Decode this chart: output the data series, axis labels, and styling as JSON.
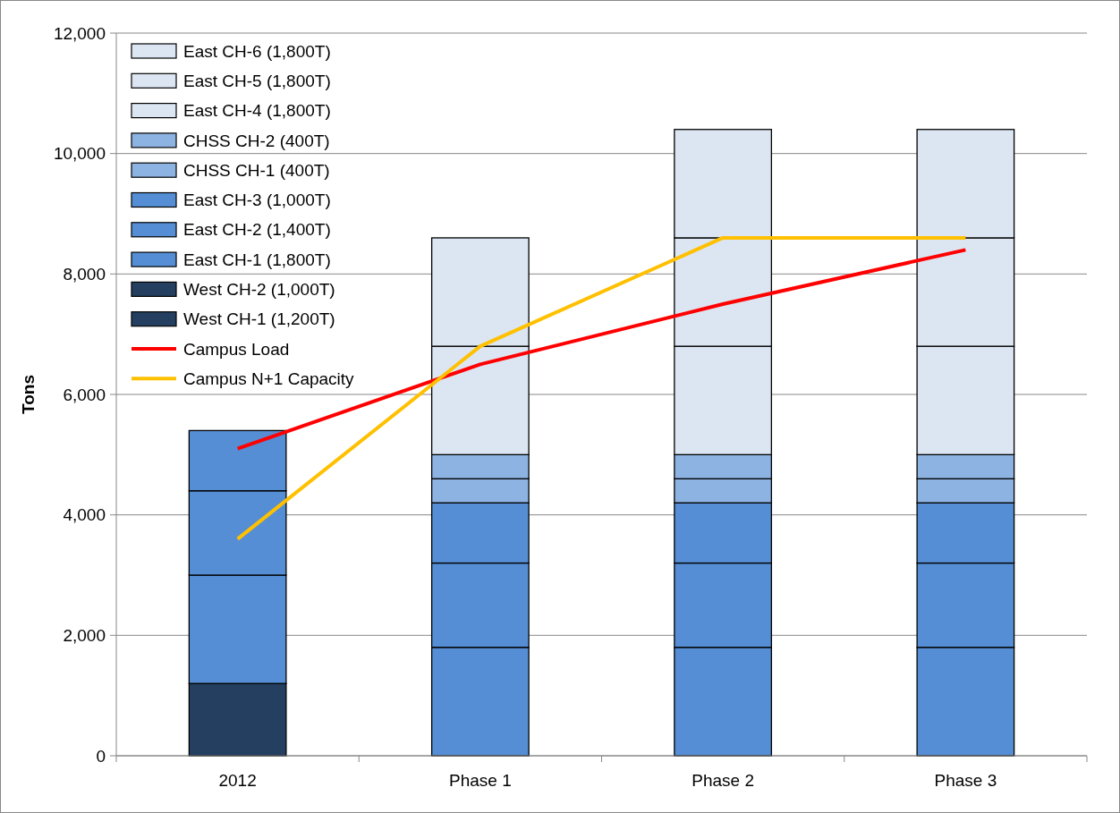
{
  "chart_data": {
    "type": "bar",
    "stacked": true,
    "ylabel": "Tons",
    "categories": [
      "2012",
      "Phase 1",
      "Phase 2",
      "Phase 3"
    ],
    "ylim": [
      0,
      12000
    ],
    "yticks": [
      {
        "value": 0,
        "label": "0"
      },
      {
        "value": 2000,
        "label": "2,000"
      },
      {
        "value": 4000,
        "label": "4,000"
      },
      {
        "value": 6000,
        "label": "6,000"
      },
      {
        "value": 8000,
        "label": "8,000"
      },
      {
        "value": 10000,
        "label": "10,000"
      },
      {
        "value": 12000,
        "label": "12,000"
      }
    ],
    "grid": "y",
    "legend": "top left",
    "series": [
      {
        "name": "West CH-1 (1,200T)",
        "color": "#243f60",
        "values": [
          1200,
          null,
          null,
          null
        ]
      },
      {
        "name": "West CH-2 (1,000T)",
        "color": "#243f60",
        "values": [
          null,
          null,
          null,
          null
        ]
      },
      {
        "name": "East CH-1 (1,800T)",
        "color": "#558ed5",
        "values": [
          1800,
          1800,
          1800,
          1800
        ]
      },
      {
        "name": "East CH-2 (1,400T)",
        "color": "#558ed5",
        "values": [
          1400,
          1400,
          1400,
          1400
        ]
      },
      {
        "name": "East CH-3 (1,000T)",
        "color": "#558ed5",
        "values": [
          1000,
          1000,
          1000,
          1000
        ]
      },
      {
        "name": "CHSS CH-1 (400T)",
        "color": "#8db3e2",
        "values": [
          null,
          400,
          400,
          400
        ]
      },
      {
        "name": "CHSS CH-2 (400T)",
        "color": "#8db3e2",
        "values": [
          null,
          400,
          400,
          400
        ]
      },
      {
        "name": "East CH-4 (1,800T)",
        "color": "#dce6f2",
        "values": [
          null,
          1800,
          1800,
          1800
        ]
      },
      {
        "name": "East CH-5 (1,800T)",
        "color": "#dce6f2",
        "values": [
          null,
          1800,
          1800,
          1800
        ]
      },
      {
        "name": "East CH-6 (1,800T)",
        "color": "#dce6f2",
        "values": [
          null,
          null,
          1800,
          1800
        ]
      },
      {
        "name": "Campus Load",
        "type": "line",
        "color": "#ff0000",
        "values": [
          5100,
          6500,
          7500,
          8400
        ]
      },
      {
        "name": "Campus N+1 Capacity",
        "type": "line",
        "color": "#ffc000",
        "values": [
          3600,
          6800,
          8600,
          8600
        ]
      }
    ]
  }
}
